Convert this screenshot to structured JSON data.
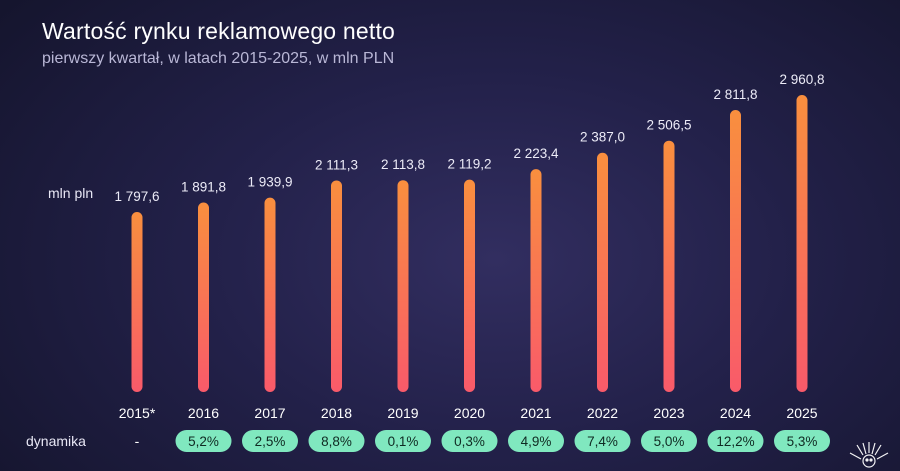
{
  "title": "Wartość rynku reklamowego netto",
  "subtitle": "pierwszy kwartał, w latach 2015-2025, w mln PLN",
  "unit_label": "mln pln",
  "growth_label": "dynamika",
  "colors": {
    "bar_top": "#f98f3e",
    "bar_bottom": "#f95a6a",
    "pill": "#80e8bf",
    "background": "#23214a"
  },
  "chart_data": {
    "type": "bar",
    "title": "Wartość rynku reklamowego netto",
    "subtitle": "pierwszy kwartał, w latach 2015-2025, w mln PLN",
    "ylabel": "mln pln",
    "categories": [
      "2015*",
      "2016",
      "2017",
      "2018",
      "2019",
      "2020",
      "2021",
      "2022",
      "2023",
      "2024",
      "2025"
    ],
    "values": [
      1797.6,
      1891.8,
      1939.9,
      2111.3,
      2113.8,
      2119.2,
      2223.4,
      2387.0,
      2506.5,
      2811.8,
      2960.8
    ],
    "value_labels": [
      "1 797,6",
      "1 891,8",
      "1 939,9",
      "2 111,3",
      "2 113,8",
      "2 119,2",
      "2 223,4",
      "2 387,0",
      "2 506,5",
      "2 811,8",
      "2 960,8"
    ],
    "growth_labels": [
      "-",
      "5,2%",
      "2,5%",
      "8,8%",
      "0,1%",
      "0,3%",
      "4,9%",
      "7,4%",
      "5,0%",
      "12,2%",
      "5,3%"
    ],
    "ylim": [
      0,
      2960.8
    ],
    "grid": false,
    "legend": "none"
  }
}
